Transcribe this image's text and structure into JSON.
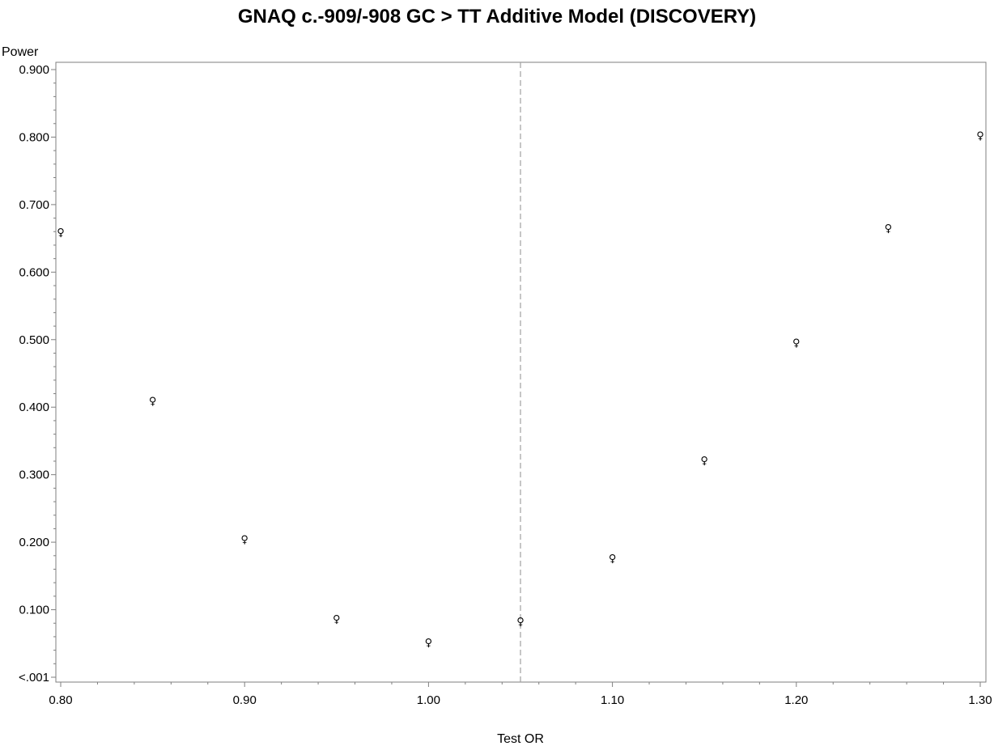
{
  "chart_data": {
    "type": "scatter",
    "title": "GNAQ c.-909/-908 GC > TT Additive Model (DISCOVERY)",
    "xlabel": "Test OR",
    "ylabel": "Power",
    "xlim": [
      0.8,
      1.3
    ],
    "ylim": [
      0.0,
      0.9
    ],
    "x_ticks": [
      0.8,
      0.9,
      1.0,
      1.1,
      1.2,
      1.3
    ],
    "x_tick_labels": [
      "0.80",
      "0.90",
      "1.00",
      "1.10",
      "1.20",
      "1.30"
    ],
    "y_ticks": [
      0.0,
      0.1,
      0.2,
      0.3,
      0.4,
      0.5,
      0.6,
      0.7,
      0.8,
      0.9
    ],
    "y_tick_labels": [
      "<.001",
      "0.100",
      "0.200",
      "0.300",
      "0.400",
      "0.500",
      "0.600",
      "0.700",
      "0.800",
      "0.900"
    ],
    "reference_line_x": 1.05,
    "reference_line_style": "dashed",
    "marker_symbol": "♀",
    "grid": false,
    "x": [
      0.8,
      0.85,
      0.9,
      0.95,
      1.0,
      1.05,
      1.1,
      1.15,
      1.2,
      1.25,
      1.3
    ],
    "y": [
      0.66,
      0.41,
      0.205,
      0.087,
      0.052,
      0.083,
      0.177,
      0.322,
      0.496,
      0.666,
      0.803
    ]
  }
}
